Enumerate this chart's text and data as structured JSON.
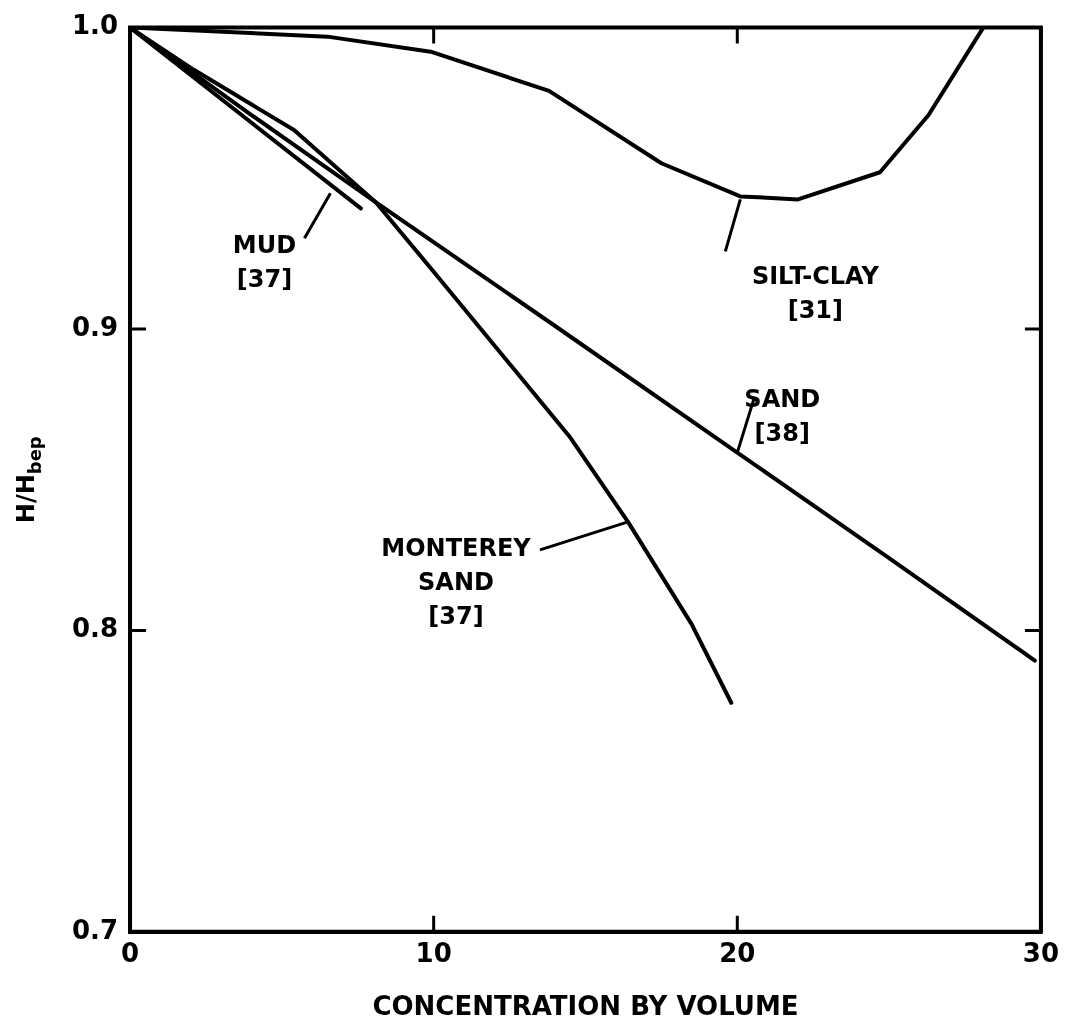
{
  "chart_data": {
    "type": "line",
    "xlabel": "CONCENTRATION BY VOLUME",
    "ylabel": "H/H$_{bep}$",
    "xlim": [
      0,
      30
    ],
    "xticks": [
      0,
      10,
      20,
      30
    ],
    "ylim": [
      0.7,
      1.0
    ],
    "yticks": [
      0.7,
      0.8,
      0.9,
      {
        "value": 1.0,
        "label": "1.0"
      }
    ],
    "grid": false,
    "legend": false,
    "marker": "none",
    "line_style": "solid",
    "series": [
      {
        "color": "#000000",
        "x": [
          0,
          7.6
        ],
        "values": [
          1.0,
          0.94
        ]
      },
      {
        "color": "#000000",
        "x": [
          0,
          6.5,
          9.9,
          13.8,
          17.5,
          20.1,
          22,
          24.7,
          26.3,
          28.1
        ],
        "values": [
          1.0,
          0.997,
          0.992,
          0.979,
          0.955,
          0.944,
          0.943,
          0.952,
          0.971,
          1.0
        ]
      },
      {
        "color": "#000000",
        "x": [
          0,
          4,
          8.1,
          14,
          20,
          25,
          29.8
        ],
        "values": [
          1.0,
          0.971,
          0.942,
          0.901,
          0.859,
          0.824,
          0.79
        ]
      },
      {
        "color": "#000000",
        "x": [
          0,
          2.1,
          5.4,
          8.1,
          10,
          14.5,
          16.4,
          18.5,
          19.8
        ],
        "values": [
          1.0,
          0.986,
          0.966,
          0.942,
          0.919,
          0.864,
          0.836,
          0.802,
          0.776
        ]
      }
    ],
    "annotations": [
      {
        "text": "MUD [37]",
        "x": 6.6,
        "y": 0.945
      },
      {
        "text": "SILT-CLAY [31]",
        "x": 20.1,
        "y": 0.943
      },
      {
        "text": "SAND [38]",
        "x": 20,
        "y": 0.859
      },
      {
        "text": "MONTEREY SAND [37]",
        "x": 16.4,
        "y": 0.836
      }
    ]
  }
}
